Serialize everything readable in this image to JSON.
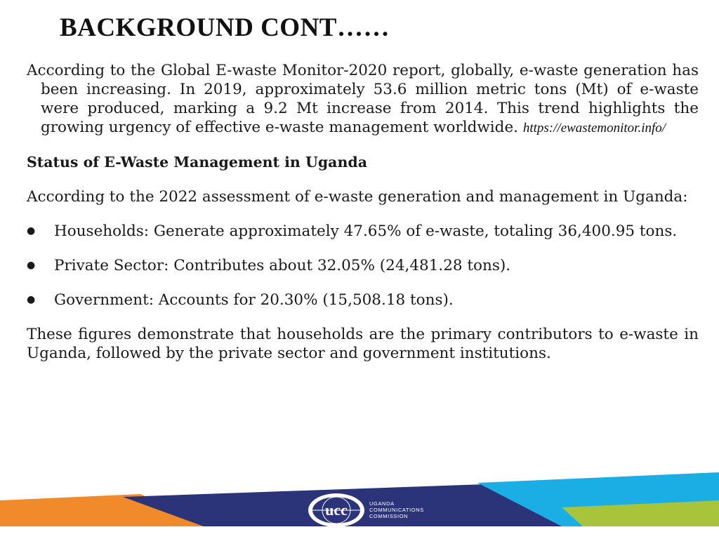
{
  "title": "BACKGROUND CONT……",
  "intro": {
    "text": "According to the Global E-waste Monitor-2020 report, globally, e-waste generation has been increasing. In 2019, approximately 53.6 million metric tons (Mt) of e-waste were produced, marking a 9.2 Mt increase from 2014. This trend highlights the growing urgency of effective e-waste management worldwide.",
    "source": "https://ewastemonitor.info/"
  },
  "section_heading": "Status of E-Waste Management in Uganda",
  "assessment_intro": "According to the 2022 assessment of e-waste generation and management in Uganda:",
  "bullets": [
    "Households: Generate approximately 47.65% of e-waste, totaling 36,400.95 tons.",
    "Private Sector: Contributes about 32.05% (24,481.28 tons).",
    "Government: Accounts for 20.30% (15,508.18 tons)."
  ],
  "conclusion": "These figures demonstrate that households are the primary contributors to e-waste in Uganda, followed by the private sector and government institutions.",
  "footer": {
    "logo_mark": "ucc",
    "logo_lines": [
      "UGANDA",
      "COMMUNICATIONS",
      "COMMISSION"
    ],
    "colors": {
      "navy": "#2b3478",
      "orange": "#f08a2a",
      "cyan": "#1aaee5",
      "green": "#a8c43a"
    }
  }
}
